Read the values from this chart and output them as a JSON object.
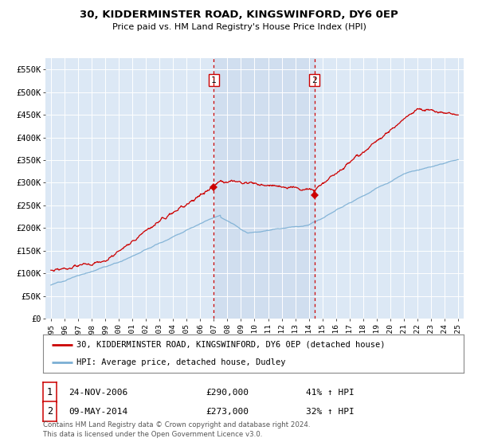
{
  "title": "30, KIDDERMINSTER ROAD, KINGSWINFORD, DY6 0EP",
  "subtitle": "Price paid vs. HM Land Registry's House Price Index (HPI)",
  "red_label": "30, KIDDERMINSTER ROAD, KINGSWINFORD, DY6 0EP (detached house)",
  "blue_label": "HPI: Average price, detached house, Dudley",
  "annotation1_date": "24-NOV-2006",
  "annotation1_price": "£290,000",
  "annotation1_hpi": "41% ↑ HPI",
  "annotation2_date": "09-MAY-2014",
  "annotation2_price": "£273,000",
  "annotation2_hpi": "32% ↑ HPI",
  "footer": "Contains HM Land Registry data © Crown copyright and database right 2024.\nThis data is licensed under the Open Government Licence v3.0.",
  "ylim": [
    0,
    575000
  ],
  "yticks": [
    0,
    50000,
    100000,
    150000,
    200000,
    250000,
    300000,
    350000,
    400000,
    450000,
    500000,
    550000
  ],
  "ytick_labels": [
    "£0",
    "£50K",
    "£100K",
    "£150K",
    "£200K",
    "£250K",
    "£300K",
    "£350K",
    "£400K",
    "£450K",
    "£500K",
    "£550K"
  ],
  "background_color": "#ffffff",
  "plot_bg_color": "#dce8f5",
  "grid_color": "#ffffff",
  "red_color": "#cc0000",
  "blue_color": "#7bafd4",
  "vline1_x": 2007.0,
  "vline2_x": 2014.4,
  "shade_color": "#c8d8ec",
  "marker1_x": 2007.0,
  "marker1_y": 290000,
  "marker2_x": 2014.4,
  "marker2_y": 273000,
  "xlim_start": 1994.6,
  "xlim_end": 2025.4,
  "xtick_years": [
    1995,
    1996,
    1997,
    1998,
    1999,
    2000,
    2001,
    2002,
    2003,
    2004,
    2005,
    2006,
    2007,
    2008,
    2009,
    2010,
    2011,
    2012,
    2013,
    2014,
    2015,
    2016,
    2017,
    2018,
    2019,
    2020,
    2021,
    2022,
    2023,
    2024,
    2025
  ]
}
